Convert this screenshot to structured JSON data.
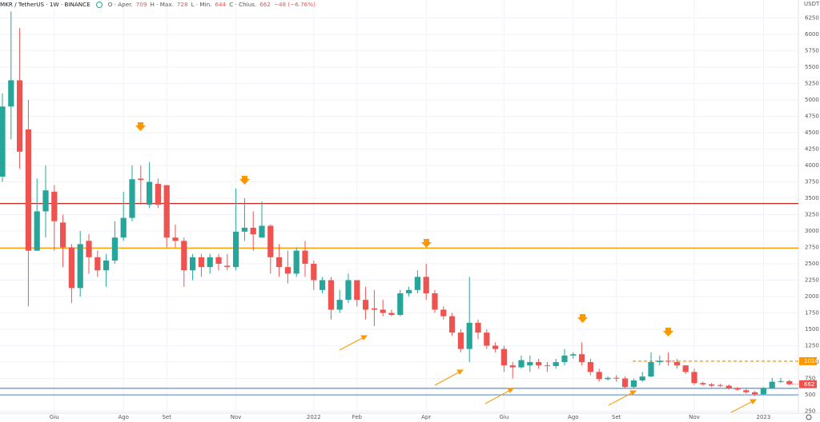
{
  "chart_data": {
    "type": "candlestick",
    "title": "MKR / TetherUS · 1W · BINANCE",
    "ohlc_labels": [
      "O · Aper.",
      "H · Max.",
      "L · Min.",
      "C · Chius."
    ],
    "change": "−48 (−6.76%)",
    "currency": "USDT",
    "up_color": "#26a69a",
    "down_color": "#ef5350",
    "grid": true,
    "categories": [
      null,
      null,
      null,
      null,
      null,
      null,
      "Giu",
      null,
      null,
      null,
      null,
      null,
      null,
      null,
      "Ago",
      null,
      null,
      null,
      null,
      "Set",
      null,
      null,
      null,
      null,
      null,
      null,
      null,
      "Nov",
      null,
      null,
      null,
      null,
      null,
      null,
      null,
      null,
      "2022",
      null,
      null,
      null,
      null,
      "Feb",
      null,
      null,
      null,
      null,
      null,
      null,
      null,
      "Apr",
      null,
      null,
      null,
      null,
      null,
      null,
      null,
      null,
      "Giu",
      null,
      null,
      null,
      null,
      null,
      null,
      null,
      "Ago",
      null,
      null,
      null,
      null,
      "Set",
      null,
      null,
      null,
      null,
      null,
      null,
      null,
      null,
      "Nov",
      null,
      null,
      null,
      null,
      null,
      null,
      null,
      "2023",
      null,
      null,
      null
    ],
    "open": [
      3830,
      4900,
      5300,
      4550,
      2700,
      3300,
      3600,
      3130,
      2750,
      2130,
      2850,
      2600,
      2400,
      2550,
      2900,
      3200,
      3800,
      3400,
      3720,
      3700,
      2900,
      2850,
      2400,
      2600,
      2450,
      2600,
      2470,
      2450,
      2990,
      3050,
      2900,
      3080,
      2600,
      2450,
      2350,
      2700,
      2500,
      2100,
      2250,
      1800,
      1950,
      2250,
      1950,
      1820,
      1800,
      1750,
      1720,
      2050,
      2100,
      2300,
      2050,
      1800,
      1700,
      1450,
      1200,
      1600,
      1450,
      1250,
      1200,
      950,
      920,
      950,
      1000,
      950,
      940,
      1000,
      1100,
      1120,
      1000,
      850,
      740,
      760,
      750,
      620,
      720,
      780,
      1000,
      1020,
      1000,
      950,
      850,
      680,
      660,
      650,
      640,
      600,
      570,
      540,
      510,
      600,
      700,
      709
    ],
    "high": [
      5100,
      6350,
      6100,
      5000,
      3800,
      4000,
      3700,
      3250,
      2800,
      3000,
      2950,
      2700,
      2650,
      3150,
      3600,
      4000,
      4000,
      4050,
      3800,
      3700,
      3100,
      2900,
      2650,
      2650,
      2650,
      2650,
      2650,
      3650,
      3500,
      3300,
      3450,
      3100,
      2800,
      2700,
      2750,
      2850,
      2550,
      2300,
      2300,
      2100,
      2350,
      2250,
      2150,
      2100,
      1950,
      1800,
      2100,
      2150,
      2400,
      2500,
      2100,
      1850,
      1750,
      1500,
      2300,
      1650,
      1500,
      1300,
      1250,
      1000,
      1100,
      1100,
      1050,
      1000,
      1050,
      1200,
      1150,
      1300,
      1050,
      900,
      780,
      800,
      780,
      750,
      850,
      1150,
      1100,
      1150,
      1050,
      950,
      900,
      700,
      680,
      670,
      660,
      620,
      590,
      560,
      620,
      760,
      760,
      728
    ],
    "low": [
      3750,
      4400,
      3950,
      1850,
      2700,
      2900,
      2700,
      2450,
      1900,
      2000,
      2350,
      2300,
      2150,
      2500,
      2850,
      3150,
      3400,
      3350,
      3350,
      2750,
      2750,
      2150,
      2250,
      2300,
      2350,
      2400,
      2400,
      2400,
      2850,
      2700,
      2900,
      2350,
      2300,
      2200,
      2300,
      2300,
      2100,
      2050,
      1650,
      1750,
      1900,
      1850,
      1650,
      1550,
      1700,
      1700,
      1700,
      2000,
      2050,
      1950,
      1750,
      1650,
      1400,
      1150,
      1000,
      1350,
      1200,
      1150,
      850,
      750,
      900,
      850,
      900,
      850,
      900,
      950,
      1050,
      950,
      800,
      700,
      720,
      700,
      600,
      600,
      700,
      770,
      950,
      950,
      900,
      820,
      650,
      640,
      620,
      620,
      580,
      560,
      520,
      480,
      500,
      590,
      680,
      644
    ],
    "close": [
      4900,
      5300,
      4210,
      2700,
      3300,
      3620,
      3150,
      2750,
      2130,
      2800,
      2600,
      2400,
      2550,
      2900,
      3200,
      3790,
      3780,
      3750,
      3400,
      2900,
      2850,
      2400,
      2600,
      2450,
      2600,
      2500,
      2450,
      2990,
      3050,
      2950,
      3080,
      2600,
      2450,
      2350,
      2700,
      2500,
      2250,
      2250,
      1800,
      1950,
      2250,
      1950,
      1800,
      1800,
      1750,
      1720,
      2050,
      2100,
      2300,
      2050,
      1800,
      1700,
      1450,
      1200,
      1600,
      1450,
      1250,
      1200,
      950,
      920,
      1030,
      1000,
      950,
      940,
      1000,
      1100,
      1120,
      1000,
      850,
      740,
      760,
      750,
      620,
      720,
      780,
      1000,
      1020,
      1010,
      950,
      850,
      680,
      660,
      640,
      640,
      600,
      580,
      540,
      510,
      600,
      700,
      710,
      662
    ],
    "levels": [
      {
        "value": 3420,
        "color": "#c62828"
      },
      {
        "value": 2740,
        "color": "#ff9800"
      },
      {
        "value": 600,
        "color": "#5b8fd6"
      },
      {
        "value": 500,
        "color": "#5b8fd6"
      },
      {
        "value": 1014,
        "color": "#ff9800",
        "style": "dashed"
      }
    ],
    "ylim": [
      220,
      6525
    ],
    "yticks": [
      250,
      500,
      750,
      1000,
      1250,
      1500,
      1750,
      2000,
      2250,
      2500,
      2750,
      3000,
      3250,
      3500,
      3750,
      4000,
      4250,
      4500,
      4750,
      5000,
      5250,
      5500,
      5750,
      6000,
      6250
    ]
  }
}
